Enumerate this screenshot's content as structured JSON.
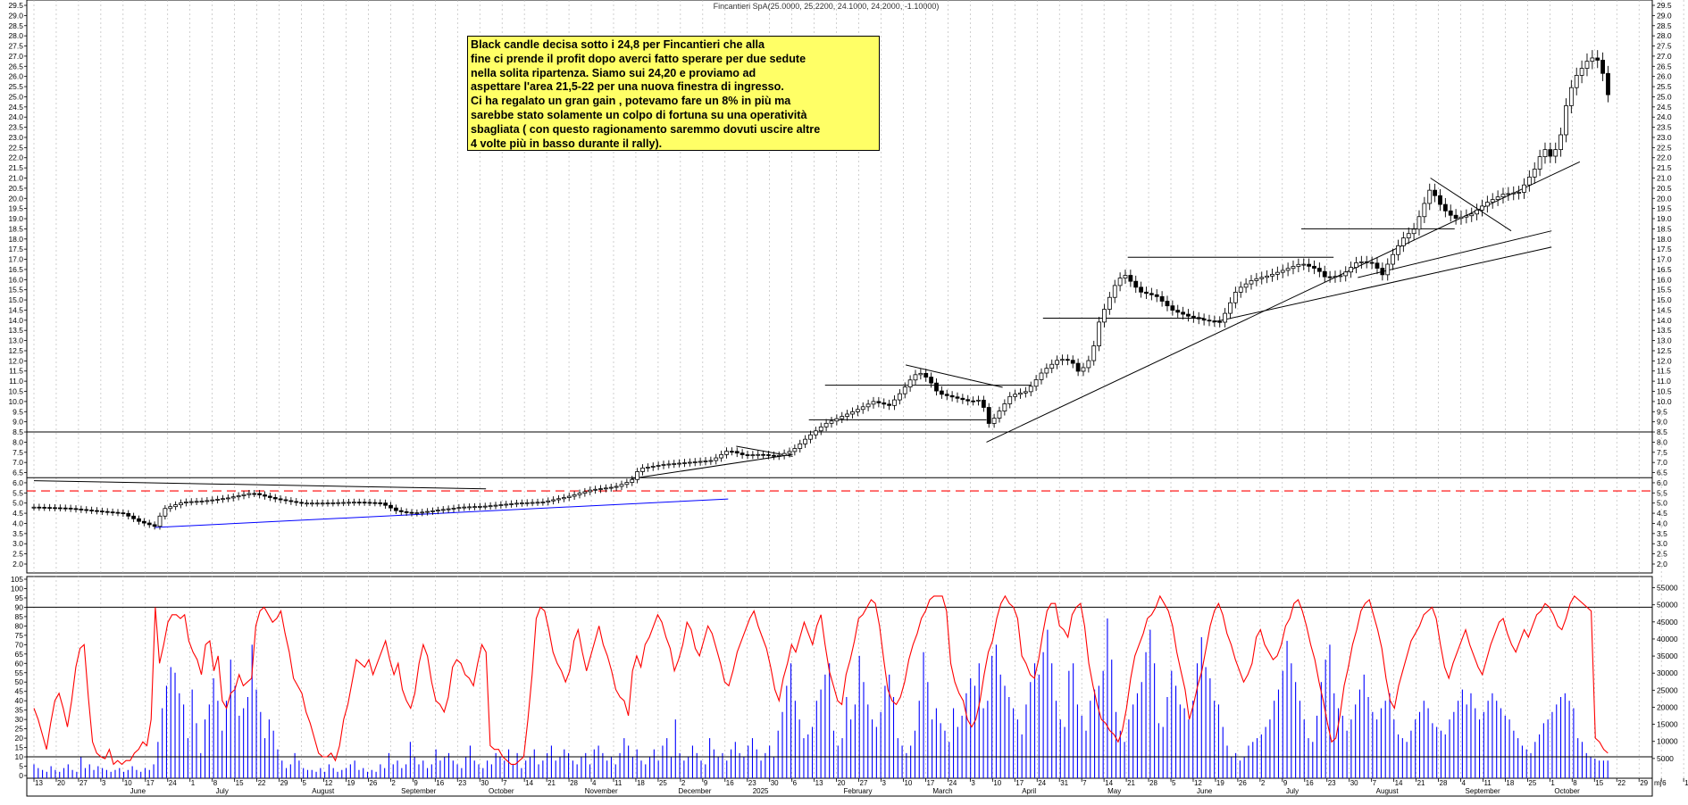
{
  "header": {
    "ticker_text": "Fincantieri SpA(25.0000, 25.2200, 24.1000, 24.2000, -1.10000)"
  },
  "annotation": {
    "lines": [
      "Black candle decisa sotto i 24,8 per Fincantieri che alla",
      "fine ci prende il profit dopo averci fatto sperare per due sedute",
      "nella solita ripartenza. Siamo sui 24,20 e proviamo ad",
      "aspettare l'area 21,5-22 per una nuova finestra di ingresso.",
      "Ci ha regalato un gran gain , potevamo fare un 8% in più ma",
      "sarebbe stato solamente un colpo di fortuna su una operatività",
      "sbagliata ( con questo ragionamento saremmo dovuti uscire altre",
      "4 volte più in basso durante il rally)."
    ]
  },
  "colors": {
    "candle": "#000000",
    "oscillator": "#ff0000",
    "volume": "#0000ff",
    "support_blue": "#0000ff",
    "dashed_level": "#ff0000",
    "grid": "#b0b0b0",
    "annotation_bg": "#ffff66"
  },
  "chart_data": [
    {
      "type": "candlestick",
      "title": "Fincantieri SpA(25.0000, 25.2200, 24.1000, 24.2000, -1.10000)",
      "ylim": [
        2.0,
        29.5
      ],
      "y_ticks": [
        "2.0",
        "2.5",
        "3.0",
        "3.5",
        "4.0",
        "4.5",
        "5.0",
        "5.5",
        "6.0",
        "6.5",
        "7.0",
        "7.5",
        "8.0",
        "8.5",
        "9.0",
        "9.5",
        "10.0",
        "10.5",
        "11.0",
        "11.5",
        "12.0",
        "12.5",
        "13.0",
        "13.5",
        "14.0",
        "14.5",
        "15.0",
        "15.5",
        "16.0",
        "16.5",
        "17.0",
        "17.5",
        "18.0",
        "18.5",
        "19.0",
        "19.5",
        "20.0",
        "20.5",
        "21.0",
        "21.5",
        "22.0",
        "22.5",
        "23.0",
        "23.5",
        "24.0",
        "24.5",
        "25.0",
        "25.5",
        "26.0",
        "26.5",
        "27.0",
        "27.5",
        "28.0",
        "28.5",
        "29.0",
        "29.5"
      ],
      "close_path": [
        [
          0,
          4.8
        ],
        [
          40,
          4.75
        ],
        [
          80,
          4.6
        ],
        [
          110,
          4.5
        ],
        [
          130,
          4.1
        ],
        [
          150,
          3.85
        ],
        [
          160,
          4.7
        ],
        [
          185,
          5.05
        ],
        [
          210,
          5.1
        ],
        [
          240,
          5.25
        ],
        [
          270,
          5.5
        ],
        [
          300,
          5.2
        ],
        [
          330,
          5.0
        ],
        [
          360,
          5.0
        ],
        [
          400,
          5.05
        ],
        [
          430,
          5.0
        ],
        [
          450,
          4.6
        ],
        [
          470,
          4.5
        ],
        [
          500,
          4.65
        ],
        [
          530,
          4.8
        ],
        [
          560,
          4.85
        ],
        [
          600,
          5.0
        ],
        [
          630,
          5.05
        ],
        [
          660,
          5.3
        ],
        [
          690,
          5.65
        ],
        [
          720,
          5.8
        ],
        [
          740,
          6.1
        ],
        [
          750,
          6.7
        ],
        [
          780,
          6.9
        ],
        [
          810,
          7.0
        ],
        [
          840,
          7.1
        ],
        [
          860,
          7.6
        ],
        [
          880,
          7.35
        ],
        [
          900,
          7.4
        ],
        [
          920,
          7.3
        ],
        [
          940,
          7.6
        ],
        [
          960,
          8.3
        ],
        [
          980,
          8.9
        ],
        [
          1000,
          9.25
        ],
        [
          1020,
          9.6
        ],
        [
          1040,
          10.0
        ],
        [
          1060,
          9.8
        ],
        [
          1075,
          10.5
        ],
        [
          1090,
          11.3
        ],
        [
          1100,
          11.4
        ],
        [
          1110,
          11.0
        ],
        [
          1120,
          10.4
        ],
        [
          1140,
          10.2
        ],
        [
          1160,
          10.0
        ],
        [
          1175,
          10.1
        ],
        [
          1180,
          8.8
        ],
        [
          1190,
          9.2
        ],
        [
          1210,
          10.3
        ],
        [
          1230,
          10.5
        ],
        [
          1250,
          11.5
        ],
        [
          1270,
          12.1
        ],
        [
          1285,
          12.0
        ],
        [
          1295,
          11.4
        ],
        [
          1310,
          12.2
        ],
        [
          1320,
          14.0
        ],
        [
          1340,
          15.8
        ],
        [
          1350,
          16.3
        ],
        [
          1370,
          15.4
        ],
        [
          1390,
          15.2
        ],
        [
          1410,
          14.5
        ],
        [
          1430,
          14.2
        ],
        [
          1450,
          14.0
        ],
        [
          1470,
          13.9
        ],
        [
          1490,
          15.5
        ],
        [
          1510,
          16.0
        ],
        [
          1530,
          16.2
        ],
        [
          1550,
          16.5
        ],
        [
          1570,
          16.8
        ],
        [
          1590,
          16.5
        ],
        [
          1600,
          16.1
        ],
        [
          1620,
          16.2
        ],
        [
          1640,
          16.9
        ],
        [
          1660,
          16.8
        ],
        [
          1670,
          16.2
        ],
        [
          1680,
          17.0
        ],
        [
          1695,
          18.0
        ],
        [
          1710,
          18.5
        ],
        [
          1720,
          19.5
        ],
        [
          1730,
          20.5
        ],
        [
          1745,
          19.5
        ],
        [
          1760,
          19.0
        ],
        [
          1780,
          19.2
        ],
        [
          1800,
          19.8
        ],
        [
          1820,
          20.2
        ],
        [
          1840,
          20.3
        ],
        [
          1860,
          21.5
        ],
        [
          1870,
          22.5
        ],
        [
          1880,
          22.0
        ],
        [
          1890,
          22.8
        ],
        [
          1900,
          25.0
        ],
        [
          1910,
          26.0
        ],
        [
          1925,
          26.8
        ],
        [
          1935,
          27.0
        ],
        [
          1945,
          26.0
        ],
        [
          1955,
          24.2
        ]
      ],
      "levels": {
        "resistance_solid": [
          8.5,
          6.25
        ],
        "dashed": 5.6,
        "resistance_segments": [
          {
            "from": 0.0,
            "to": 0.0,
            "value": 0
          }
        ]
      },
      "x_labels_days": [
        "13",
        "20",
        "27",
        "3",
        "10",
        "17",
        "24",
        "1",
        "8",
        "15",
        "22",
        "29",
        "5",
        "12",
        "19",
        "26",
        "2",
        "9",
        "16",
        "23",
        "30",
        "7",
        "14",
        "21",
        "28",
        "4",
        "11",
        "18",
        "25",
        "2",
        "9",
        "16",
        "23",
        "30",
        "6",
        "13",
        "20",
        "27",
        "3",
        "10",
        "17",
        "24",
        "3",
        "10",
        "17",
        "24",
        "31",
        "7",
        "14",
        "21",
        "28",
        "5",
        "12",
        "19",
        "26",
        "2",
        "9",
        "16",
        "23",
        "30",
        "7",
        "14",
        "21",
        "28",
        "4",
        "11",
        "18",
        "25",
        "1",
        "8",
        "15",
        "22",
        "29",
        "6",
        "13",
        "20",
        "27"
      ],
      "x_labels_months": [
        "June",
        "July",
        "August",
        "September",
        "October",
        "November",
        "December",
        "2025",
        "February",
        "March",
        "April",
        "May",
        "June",
        "July",
        "August",
        "September",
        "October"
      ],
      "x_axis_right_label": "mj"
    },
    {
      "type": "line+bar",
      "left_ylim": [
        0,
        105
      ],
      "left_ticks": [
        "0",
        "5",
        "10",
        "15",
        "20",
        "25",
        "30",
        "35",
        "40",
        "45",
        "50",
        "55",
        "60",
        "65",
        "70",
        "75",
        "80",
        "85",
        "90",
        "95",
        "100",
        "105"
      ],
      "right_ticks": [
        "5000",
        "10000",
        "15000",
        "20000",
        "25000",
        "30000",
        "35000",
        "40000",
        "45000",
        "50000",
        "55000"
      ],
      "reference_levels": [
        90,
        10
      ],
      "oscillator_values": [
        36,
        30,
        22,
        14,
        28,
        40,
        44,
        36,
        26,
        40,
        58,
        68,
        70,
        42,
        18,
        12,
        10,
        9,
        14,
        6,
        8,
        6,
        8,
        8,
        12,
        14,
        18,
        16,
        30,
        90,
        60,
        70,
        82,
        86,
        86,
        84,
        86,
        72,
        66,
        62,
        54,
        70,
        72,
        56,
        64,
        40,
        36,
        44,
        46,
        54,
        48,
        50,
        52,
        80,
        88,
        90,
        86,
        82,
        84,
        88,
        76,
        66,
        52,
        48,
        44,
        34,
        28,
        20,
        12,
        10,
        10,
        12,
        8,
        16,
        30,
        38,
        50,
        62,
        60,
        58,
        62,
        54,
        60,
        66,
        72,
        62,
        54,
        60,
        46,
        40,
        36,
        44,
        60,
        70,
        64,
        50,
        40,
        38,
        34,
        42,
        58,
        62,
        60,
        54,
        52,
        48,
        60,
        70,
        66,
        16,
        14,
        14,
        10,
        8,
        6,
        6,
        8,
        10,
        30,
        54,
        84,
        90,
        88,
        78,
        66,
        60,
        56,
        50,
        56,
        72,
        78,
        66,
        56,
        64,
        72,
        80,
        70,
        64,
        56,
        46,
        42,
        40,
        32,
        56,
        64,
        58,
        70,
        74,
        80,
        86,
        82,
        74,
        68,
        56,
        62,
        70,
        82,
        78,
        68,
        64,
        72,
        80,
        76,
        68,
        60,
        50,
        48,
        56,
        66,
        72,
        78,
        84,
        88,
        80,
        74,
        68,
        58,
        46,
        40,
        52,
        60,
        70,
        66,
        74,
        82,
        76,
        70,
        80,
        86,
        70,
        56,
        48,
        40,
        38,
        54,
        62,
        72,
        84,
        86,
        90,
        94,
        92,
        80,
        62,
        46,
        40,
        38,
        42,
        50,
        62,
        70,
        76,
        84,
        88,
        94,
        96,
        96,
        96,
        88,
        60,
        50,
        44,
        40,
        30,
        26,
        30,
        40,
        54,
        66,
        72,
        84,
        92,
        96,
        92,
        90,
        84,
        64,
        60,
        54,
        52,
        62,
        76,
        88,
        92,
        92,
        80,
        78,
        74,
        86,
        90,
        92,
        80,
        60,
        48,
        38,
        30,
        28,
        24,
        22,
        18,
        24,
        36,
        52,
        64,
        70,
        76,
        84,
        86,
        90,
        96,
        92,
        88,
        80,
        66,
        56,
        46,
        30,
        38,
        48,
        56,
        68,
        80,
        88,
        92,
        86,
        76,
        70,
        62,
        56,
        50,
        54,
        60,
        74,
        78,
        70,
        66,
        62,
        64,
        70,
        80,
        84,
        92,
        94,
        88,
        80,
        70,
        62,
        50,
        40,
        28,
        18,
        20,
        32,
        48,
        58,
        70,
        78,
        88,
        92,
        94,
        86,
        78,
        68,
        52,
        40,
        36,
        48,
        56,
        64,
        72,
        76,
        80,
        86,
        88,
        90,
        84,
        70,
        58,
        52,
        60,
        66,
        72,
        78,
        70,
        64,
        58,
        54,
        62,
        70,
        76,
        82,
        84,
        76,
        70,
        66,
        72,
        78,
        74,
        80,
        86,
        88,
        92,
        90,
        86,
        80,
        78,
        84,
        92,
        96,
        94,
        92,
        90,
        88,
        20,
        18,
        14,
        12
      ],
      "volume_values": [
        6,
        4,
        3,
        2,
        5,
        3,
        2,
        4,
        6,
        3,
        2,
        10,
        4,
        6,
        3,
        5,
        4,
        3,
        2,
        3,
        4,
        2,
        3,
        5,
        3,
        2,
        4,
        3,
        6,
        18,
        36,
        48,
        58,
        55,
        44,
        38,
        20,
        46,
        28,
        12,
        30,
        38,
        52,
        40,
        24,
        40,
        62,
        48,
        32,
        36,
        42,
        70,
        46,
        34,
        20,
        30,
        24,
        14,
        8,
        4,
        6,
        12,
        8,
        4,
        3,
        3,
        2,
        4,
        2,
        6,
        4,
        2,
        3,
        4,
        6,
        8,
        3,
        4,
        2,
        3,
        2,
        6,
        4,
        12,
        6,
        8,
        4,
        6,
        18,
        10,
        6,
        8,
        4,
        6,
        14,
        8,
        10,
        12,
        8,
        6,
        4,
        10,
        16,
        8,
        6,
        4,
        8,
        6,
        12,
        10,
        8,
        14,
        6,
        12,
        4,
        8,
        10,
        14,
        6,
        8,
        12,
        16,
        8,
        10,
        14,
        12,
        8,
        6,
        10,
        12,
        6,
        14,
        16,
        12,
        8,
        10,
        6,
        12,
        20,
        16,
        10,
        14,
        8,
        6,
        10,
        14,
        8,
        16,
        20,
        10,
        30,
        12,
        8,
        10,
        16,
        12,
        8,
        6,
        20,
        14,
        10,
        12,
        8,
        14,
        18,
        12,
        10,
        16,
        20,
        14,
        8,
        12,
        16,
        10,
        24,
        34,
        48,
        60,
        40,
        30,
        20,
        22,
        26,
        40,
        46,
        54,
        60,
        24,
        16,
        20,
        42,
        30,
        38,
        64,
        50,
        38,
        30,
        26,
        34,
        48,
        54,
        42,
        20,
        16,
        12,
        16,
        24,
        40,
        66,
        50,
        30,
        36,
        28,
        24,
        18,
        36,
        26,
        32,
        44,
        52,
        48,
        60,
        36,
        40,
        64,
        70,
        54,
        48,
        42,
        36,
        30,
        22,
        38,
        50,
        60,
        54,
        66,
        78,
        60,
        40,
        30,
        26,
        56,
        60,
        38,
        32,
        24,
        40,
        46,
        48,
        56,
        84,
        62,
        34,
        24,
        18,
        30,
        38,
        44,
        50,
        66,
        78,
        60,
        28,
        26,
        42,
        56,
        48,
        38,
        36,
        30,
        40,
        60,
        74,
        58,
        52,
        40,
        38,
        26,
        16,
        10,
        12,
        8,
        10,
        16,
        18,
        20,
        22,
        26,
        30,
        40,
        46,
        56,
        72,
        60,
        50,
        40,
        30,
        20,
        18,
        32,
        50,
        62,
        70,
        44,
        36,
        32,
        24,
        30,
        38,
        46,
        54,
        42,
        34,
        30,
        36,
        40,
        44,
        30,
        22,
        20,
        18,
        24,
        30,
        34,
        40,
        36,
        28,
        26,
        24,
        22,
        30,
        34,
        40,
        46,
        38,
        44,
        36,
        30,
        34,
        40,
        44,
        40,
        36,
        32,
        30,
        24,
        20,
        16,
        14,
        12,
        18,
        22,
        28,
        30,
        34,
        38,
        42,
        44,
        40,
        36,
        20,
        18,
        12,
        10,
        9,
        8,
        8,
        8
      ]
    }
  ]
}
